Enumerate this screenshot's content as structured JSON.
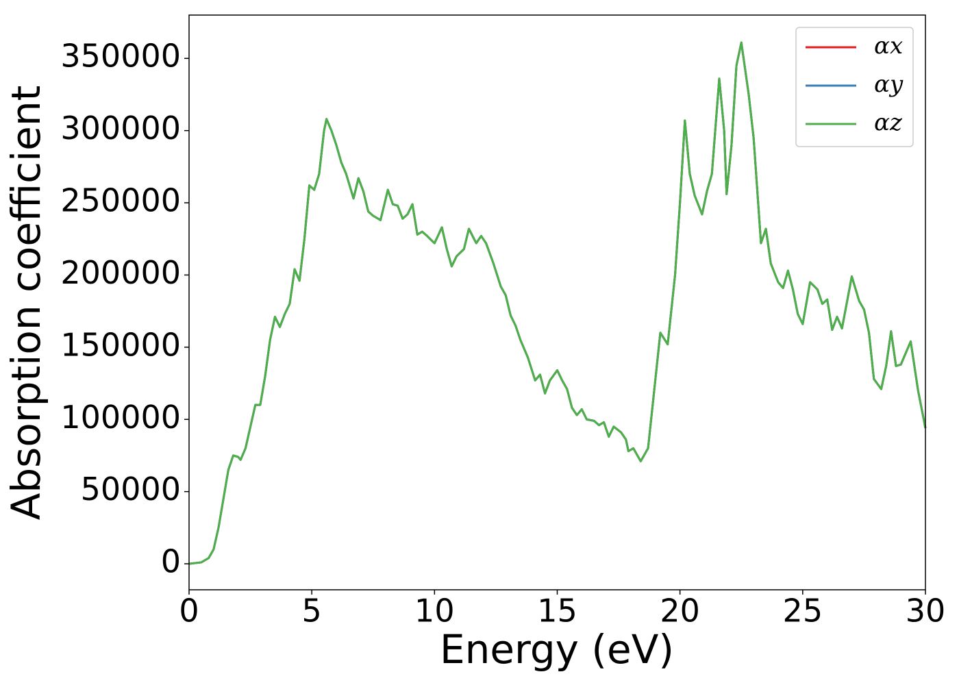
{
  "chart_data": {
    "type": "line",
    "xlabel": "Energy (eV)",
    "ylabel": "Absorption coefficient",
    "x": [
      0,
      0.5,
      0.8,
      1.0,
      1.2,
      1.4,
      1.6,
      1.8,
      2.0,
      2.1,
      2.3,
      2.5,
      2.7,
      2.9,
      3.1,
      3.3,
      3.5,
      3.7,
      3.9,
      4.1,
      4.3,
      4.5,
      4.7,
      4.9,
      5.1,
      5.3,
      5.5,
      5.6,
      5.8,
      6.0,
      6.2,
      6.4,
      6.7,
      6.9,
      7.1,
      7.3,
      7.5,
      7.8,
      8.1,
      8.3,
      8.5,
      8.7,
      8.9,
      9.1,
      9.3,
      9.5,
      9.7,
      10.0,
      10.3,
      10.5,
      10.7,
      10.9,
      11.2,
      11.4,
      11.7,
      11.9,
      12.1,
      12.4,
      12.7,
      12.9,
      13.1,
      13.3,
      13.5,
      13.8,
      14.1,
      14.3,
      14.5,
      14.7,
      15.0,
      15.2,
      15.4,
      15.6,
      15.8,
      16.0,
      16.2,
      16.5,
      16.7,
      16.9,
      17.1,
      17.3,
      17.6,
      17.8,
      17.9,
      18.1,
      18.4,
      18.7,
      19.0,
      19.2,
      19.5,
      19.8,
      20.0,
      20.2,
      20.4,
      20.6,
      20.9,
      21.1,
      21.3,
      21.6,
      21.8,
      21.9,
      22.1,
      22.3,
      22.5,
      22.8,
      23.0,
      23.3,
      23.5,
      23.7,
      24.0,
      24.2,
      24.4,
      24.6,
      24.8,
      25.0,
      25.3,
      25.6,
      25.8,
      26.0,
      26.2,
      26.4,
      26.6,
      27.0,
      27.3,
      27.5,
      27.7,
      27.9,
      28.2,
      28.4,
      28.6,
      28.8,
      29.0,
      29.4,
      29.7,
      30
    ],
    "series": [
      {
        "name": "αx",
        "color": "#e41a1c",
        "values": [
          0,
          1000,
          4000,
          10000,
          25000,
          45000,
          65000,
          75000,
          74000,
          72000,
          80000,
          95000,
          110000,
          110000,
          130000,
          155000,
          171000,
          164000,
          173000,
          180000,
          204000,
          196000,
          225000,
          262000,
          259000,
          270000,
          300000,
          308000,
          300000,
          290000,
          278000,
          270000,
          253000,
          267000,
          258000,
          244000,
          241000,
          238000,
          259000,
          249000,
          248000,
          239000,
          242000,
          249000,
          228000,
          230000,
          227000,
          222000,
          233000,
          218000,
          206000,
          213000,
          218000,
          232000,
          222000,
          227000,
          222000,
          208000,
          192000,
          186000,
          172000,
          165000,
          155000,
          143000,
          127000,
          131000,
          118000,
          127000,
          134000,
          127000,
          121000,
          108000,
          103000,
          107000,
          100000,
          99000,
          96000,
          98000,
          88000,
          95000,
          91000,
          86000,
          78000,
          80000,
          71000,
          80000,
          128000,
          160000,
          152000,
          200000,
          250000,
          307000,
          270000,
          255000,
          242000,
          258000,
          270000,
          336000,
          300000,
          256000,
          290000,
          345000,
          361000,
          325000,
          295000,
          222000,
          232000,
          208000,
          195000,
          191000,
          203000,
          190000,
          173000,
          166000,
          195000,
          190000,
          180000,
          183000,
          162000,
          171000,
          163000,
          199000,
          182000,
          176000,
          160000,
          128000,
          121000,
          137000,
          161000,
          137000,
          138000,
          154000,
          120000,
          94000
        ]
      },
      {
        "name": "αy",
        "color": "#377eb8",
        "values": [
          0,
          1000,
          4000,
          10000,
          25000,
          45000,
          65000,
          75000,
          74000,
          72000,
          80000,
          95000,
          110000,
          110000,
          130000,
          155000,
          171000,
          164000,
          173000,
          180000,
          204000,
          196000,
          225000,
          262000,
          259000,
          270000,
          300000,
          308000,
          300000,
          290000,
          278000,
          270000,
          253000,
          267000,
          258000,
          244000,
          241000,
          238000,
          259000,
          249000,
          248000,
          239000,
          242000,
          249000,
          228000,
          230000,
          227000,
          222000,
          233000,
          218000,
          206000,
          213000,
          218000,
          232000,
          222000,
          227000,
          222000,
          208000,
          192000,
          186000,
          172000,
          165000,
          155000,
          143000,
          127000,
          131000,
          118000,
          127000,
          134000,
          127000,
          121000,
          108000,
          103000,
          107000,
          100000,
          99000,
          96000,
          98000,
          88000,
          95000,
          91000,
          86000,
          78000,
          80000,
          71000,
          80000,
          128000,
          160000,
          152000,
          200000,
          250000,
          307000,
          270000,
          255000,
          242000,
          258000,
          270000,
          336000,
          300000,
          256000,
          290000,
          345000,
          361000,
          325000,
          295000,
          222000,
          232000,
          208000,
          195000,
          191000,
          203000,
          190000,
          173000,
          166000,
          195000,
          190000,
          180000,
          183000,
          162000,
          171000,
          163000,
          199000,
          182000,
          176000,
          160000,
          128000,
          121000,
          137000,
          161000,
          137000,
          138000,
          154000,
          120000,
          94000
        ]
      },
      {
        "name": "αz",
        "color": "#4daf4a",
        "values": [
          0,
          1000,
          4000,
          10000,
          25000,
          45000,
          65000,
          75000,
          74000,
          72000,
          80000,
          95000,
          110000,
          110000,
          130000,
          155000,
          171000,
          164000,
          173000,
          180000,
          204000,
          196000,
          225000,
          262000,
          259000,
          270000,
          300000,
          308000,
          300000,
          290000,
          278000,
          270000,
          253000,
          267000,
          258000,
          244000,
          241000,
          238000,
          259000,
          249000,
          248000,
          239000,
          242000,
          249000,
          228000,
          230000,
          227000,
          222000,
          233000,
          218000,
          206000,
          213000,
          218000,
          232000,
          222000,
          227000,
          222000,
          208000,
          192000,
          186000,
          172000,
          165000,
          155000,
          143000,
          127000,
          131000,
          118000,
          127000,
          134000,
          127000,
          121000,
          108000,
          103000,
          107000,
          100000,
          99000,
          96000,
          98000,
          88000,
          95000,
          91000,
          86000,
          78000,
          80000,
          71000,
          80000,
          128000,
          160000,
          152000,
          200000,
          250000,
          307000,
          270000,
          255000,
          242000,
          258000,
          270000,
          336000,
          300000,
          256000,
          290000,
          345000,
          361000,
          325000,
          295000,
          222000,
          232000,
          208000,
          195000,
          191000,
          203000,
          190000,
          173000,
          166000,
          195000,
          190000,
          180000,
          183000,
          162000,
          171000,
          163000,
          199000,
          182000,
          176000,
          160000,
          128000,
          121000,
          137000,
          161000,
          137000,
          138000,
          154000,
          120000,
          94000
        ]
      }
    ],
    "xlim": [
      0,
      30
    ],
    "xticks": [
      0,
      5,
      10,
      15,
      20,
      25,
      30
    ],
    "ylim": [
      -18000,
      380000
    ],
    "yticks": [
      0,
      50000,
      100000,
      150000,
      200000,
      250000,
      300000,
      350000
    ],
    "grid": false,
    "legend": "upper right"
  }
}
